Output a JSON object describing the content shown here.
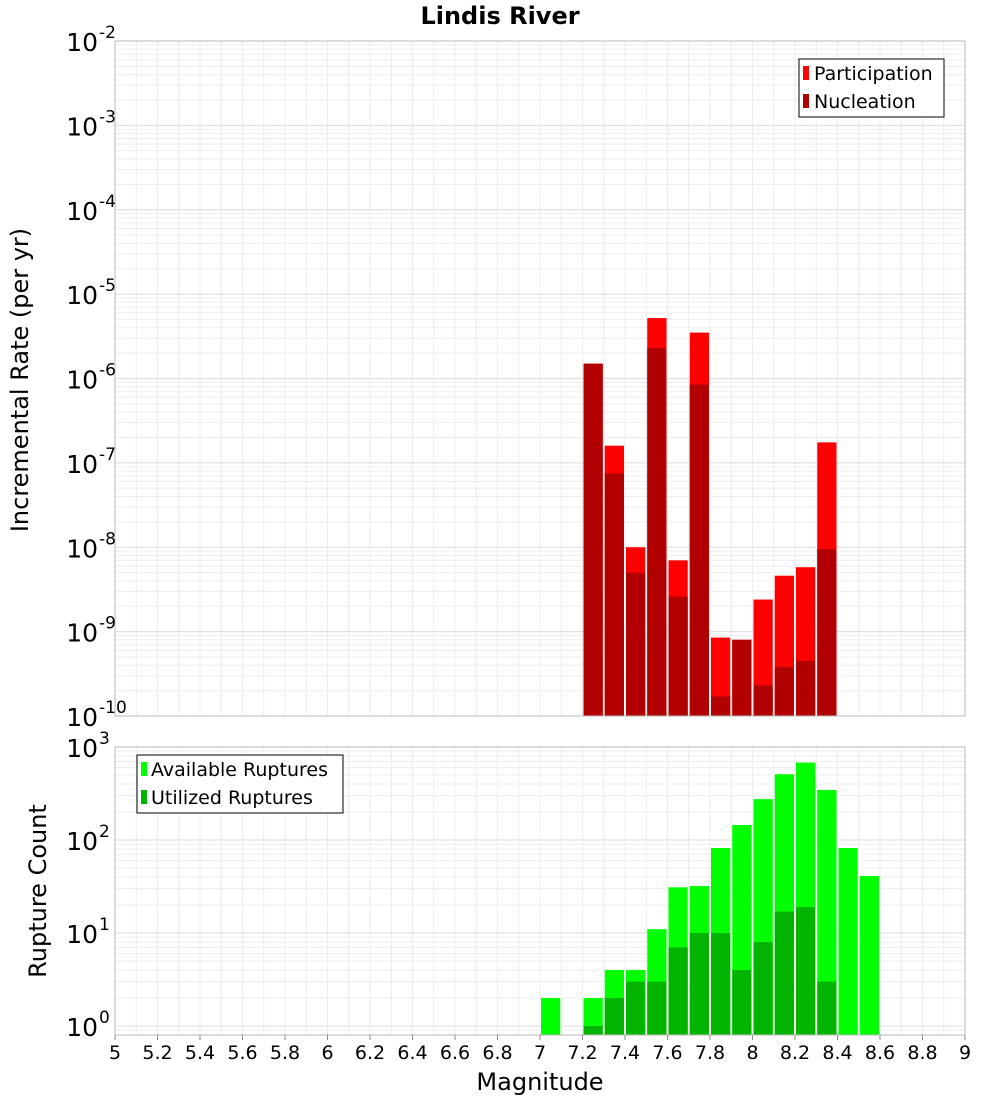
{
  "chart_data": [
    {
      "type": "bar",
      "title": "Lindis River",
      "xlabel": "",
      "ylabel": "Incremental Rate (per yr)",
      "yscale": "log",
      "ylim": [
        1e-10,
        0.01
      ],
      "xlim": [
        5,
        9
      ],
      "grid": true,
      "legend_placement": "top-right",
      "x": [
        7.25,
        7.35,
        7.45,
        7.55,
        7.65,
        7.75,
        7.85,
        7.95,
        8.05,
        8.15,
        8.25,
        8.35
      ],
      "series": [
        {
          "name": "Participation",
          "color": "#ff0000",
          "values": [
            1.5e-06,
            1.6e-07,
            1e-08,
            5.2e-06,
            7e-09,
            3.5e-06,
            8.5e-10,
            8e-10,
            2.4e-09,
            4.6e-09,
            5.8e-09,
            1.75e-07
          ]
        },
        {
          "name": "Nucleation",
          "color": "#b20000",
          "values": [
            1.5e-06,
            7.5e-08,
            5e-09,
            2.3e-06,
            2.6e-09,
            8.5e-07,
            1.7e-10,
            8e-10,
            2.3e-10,
            3.8e-10,
            4.5e-10,
            9.5e-09
          ]
        }
      ],
      "y_ticks": [
        {
          "base": "10",
          "exp": "-2"
        },
        {
          "base": "10",
          "exp": "-3"
        },
        {
          "base": "10",
          "exp": "-4"
        },
        {
          "base": "10",
          "exp": "-5"
        },
        {
          "base": "10",
          "exp": "-6"
        },
        {
          "base": "10",
          "exp": "-7"
        },
        {
          "base": "10",
          "exp": "-8"
        },
        {
          "base": "10",
          "exp": "-9"
        },
        {
          "base": "10",
          "exp": "-10"
        }
      ]
    },
    {
      "type": "bar",
      "xlabel": "Magnitude",
      "ylabel": "Rupture Count",
      "yscale": "log",
      "ylim": [
        0.8,
        1000
      ],
      "xlim": [
        5,
        9
      ],
      "grid": true,
      "legend_placement": "top-left",
      "x": [
        7.05,
        7.25,
        7.35,
        7.45,
        7.55,
        7.65,
        7.75,
        7.85,
        7.95,
        8.05,
        8.15,
        8.25,
        8.35,
        8.45,
        8.55
      ],
      "series": [
        {
          "name": "Available Ruptures",
          "color": "#00ff00",
          "values": [
            2,
            2,
            4,
            4,
            11,
            31,
            32,
            82,
            145,
            275,
            510,
            680,
            345,
            82,
            41
          ]
        },
        {
          "name": "Utilized Ruptures",
          "color": "#00b400",
          "values": [
            0,
            1,
            2,
            3,
            3,
            7,
            10,
            10,
            4,
            8,
            17,
            19,
            3,
            0,
            0
          ]
        }
      ],
      "y_ticks": [
        {
          "base": "10",
          "exp": "3"
        },
        {
          "base": "10",
          "exp": "2"
        },
        {
          "base": "10",
          "exp": "1"
        },
        {
          "base": "10",
          "exp": "0"
        }
      ],
      "x_tick_labels": [
        "5",
        "5.2",
        "5.4",
        "5.6",
        "5.8",
        "6",
        "6.2",
        "6.4",
        "6.6",
        "6.8",
        "7",
        "7.2",
        "7.4",
        "7.6",
        "7.8",
        "8",
        "8.2",
        "8.4",
        "8.6",
        "8.8",
        "9"
      ]
    }
  ]
}
